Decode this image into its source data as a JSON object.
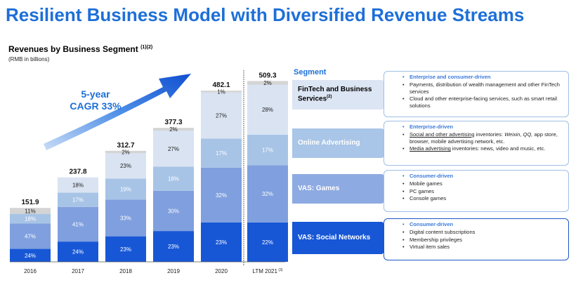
{
  "title": "Resilient Business Model with Diversified Revenue Streams",
  "subtitle": "Revenues by Business Segment",
  "subtitle_note": "(1)(2)",
  "units": "(RMB in billions)",
  "cagr_line1": "5-year",
  "cagr_line2": "CAGR 33%",
  "segment_header": "Segment",
  "colors": {
    "title": "#1d6fd8",
    "social": "#1757d6",
    "games": "#7f9fde",
    "advertising": "#a7c4e6",
    "fintech": "#d9e3f2",
    "others": "#d4d4d4"
  },
  "chart_data": {
    "type": "bar",
    "stacked": true,
    "title": "Revenues by Business Segment",
    "ylabel": "RMB in billions",
    "categories": [
      "2016",
      "2017",
      "2018",
      "2019",
      "2020",
      "LTM 2021"
    ],
    "category_note": {
      "LTM 2021": "(3)"
    },
    "totals": [
      "151.9",
      "237.8",
      "312.7",
      "377.3",
      "482.1",
      "509.3"
    ],
    "series": [
      {
        "name": "VAS: Social Networks",
        "labels": [
          "24%",
          "24%",
          "23%",
          "23%",
          "23%",
          "22%"
        ]
      },
      {
        "name": "VAS: Games",
        "labels": [
          "47%",
          "41%",
          "33%",
          "30%",
          "32%",
          "32%"
        ]
      },
      {
        "name": "Online Advertising",
        "labels": [
          "18%",
          "17%",
          "19%",
          "18%",
          "17%",
          "17%"
        ]
      },
      {
        "name": "FinTech and Business Services",
        "labels": [
          "",
          "18%",
          "23%",
          "27%",
          "27%",
          "28%"
        ]
      },
      {
        "name": "Others",
        "labels": [
          "11%",
          "",
          "2%",
          "2%",
          "1%",
          "2%"
        ]
      }
    ]
  },
  "segments": [
    {
      "label": "FinTech and Business Services",
      "note": "(2)",
      "card_header": "Enterprise and consumer-driven",
      "bullets": [
        "Payments, distribution of wealth management and other FinTech services",
        "Cloud and other enterprise-facing services, such as smart retail solutions"
      ]
    },
    {
      "label": "Online Advertising",
      "card_header": "Enterprise-driven",
      "bullet1_u": "Social and other advertising",
      "bullet1_a": " inventories: ",
      "bullet1_i": "Weixin, QQ,",
      "bullet1_b": " app store, browser, mobile advertising network, etc.",
      "bullet2_u": "Media advertising",
      "bullet2_a": " inventories: news, video and music, etc."
    },
    {
      "label": "VAS: Games",
      "card_header": "Consumer-driven",
      "bullets": [
        "Mobile games",
        "PC games",
        "Console games"
      ]
    },
    {
      "label": "VAS: Social Networks",
      "card_header": "Consumer-driven",
      "bullets": [
        "Digital content subscriptions",
        "Membership privileges",
        "Virtual item sales"
      ]
    }
  ]
}
